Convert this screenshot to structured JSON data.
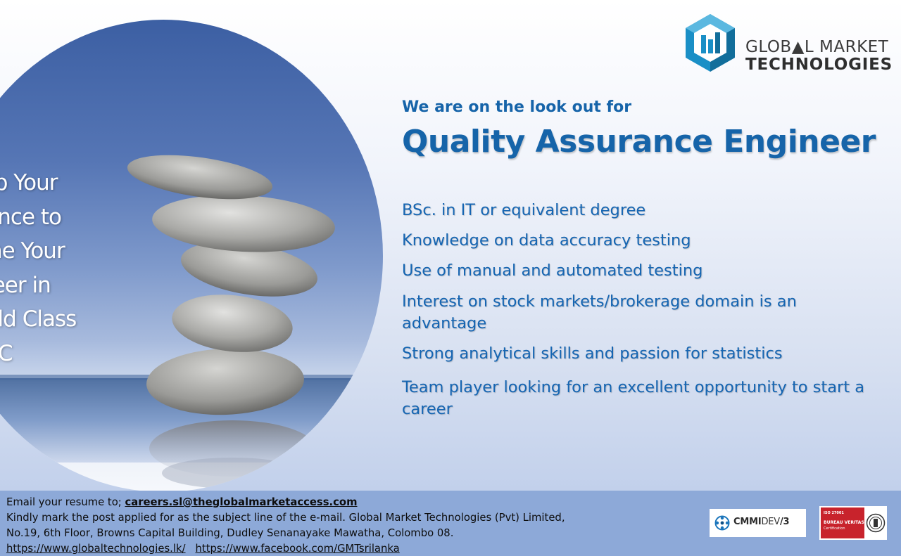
{
  "poster": {
    "tagline": [
      "Grab Your",
      "Chance to",
      "Shine Your",
      "Career in",
      "World Class",
      "SDLC"
    ],
    "logo": {
      "line1": "GLOB▲L MARKET",
      "line2": "TECHNOLOGIES",
      "icon": "gmt-hexagon-logo-icon",
      "colors": {
        "primary": "#1a8fc6",
        "dark": "#126e9b",
        "light": "#5bb8e0"
      }
    },
    "intro": "We are on the look out for",
    "job_title": "Quality Assurance Engineer",
    "requirements": [
      "BSc. in IT or equivalent degree",
      "Knowledge on data accuracy testing",
      "Use of manual and automated testing",
      "Interest on stock markets/brokerage domain is an advantage",
      "Strong analytical skills and passion for statistics",
      "Team player looking for an excellent opportunity to start a career"
    ],
    "colors": {
      "heading": "#1664a9",
      "footer_bg": "#8da9d8",
      "tagline": "#ffffff"
    }
  },
  "footer": {
    "email_prefix": "Email your resume to; ",
    "email": "careers.sl@theglobalmarketaccess.com",
    "instructions_line1": "Kindly mark the post applied for as the subject line of the e-mail. Global Market Technologies (Pvt) Limited,",
    "address": "No.19, 6th Floor, Browns Capital Building, Dudley Senanayake Mawatha, Colombo 08.",
    "website": "https://www.globaltechnologies.lk/",
    "facebook": "https://www.facebook.com/GMTsrilanka",
    "badges": {
      "cmmi": {
        "bold": "CMMI",
        "light": "DEV",
        "level": "/3",
        "icon": "cmmi-logo-icon"
      },
      "bureau_veritas": {
        "iso": "ISO 27001",
        "name": "BUREAU VERITAS",
        "sub": "Certification",
        "icon": "bureau-veritas-seal-icon"
      }
    }
  }
}
